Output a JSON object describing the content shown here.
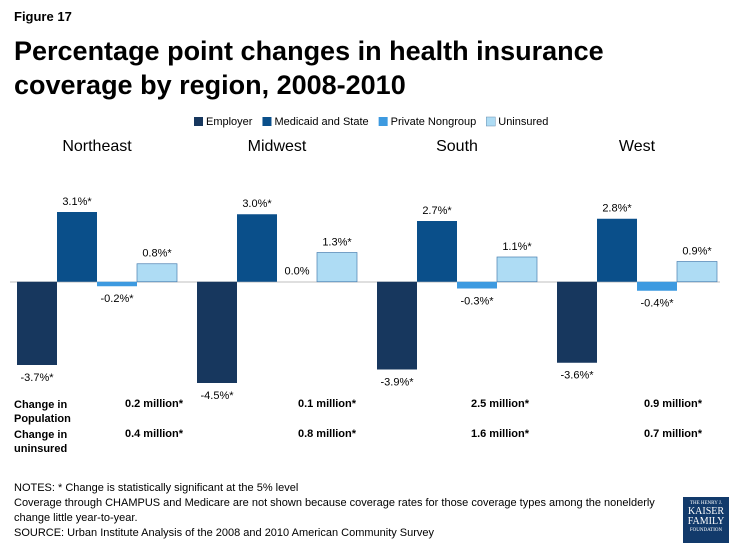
{
  "figure_label": "Figure 17",
  "chart_data": {
    "type": "bar",
    "title": "Percentage point changes in health insurance coverage by region, 2008-2010",
    "categories": [
      "Northeast",
      "Midwest",
      "South",
      "West"
    ],
    "series": [
      {
        "name": "Employer",
        "color": "#17375e",
        "values": [
          -3.7,
          -4.5,
          -3.9,
          -3.6
        ],
        "value_labels": [
          "-3.7%*",
          "-4.5%*",
          "-3.9%*",
          "-3.6%*"
        ]
      },
      {
        "name": "Medicaid and State",
        "color": "#0a4f8a",
        "values": [
          3.1,
          3.0,
          2.7,
          2.8
        ],
        "value_labels": [
          "3.1%*",
          "3.0%*",
          "2.7%*",
          "2.8%*"
        ]
      },
      {
        "name": "Private Nongroup",
        "color": "#3d9ae0",
        "values": [
          -0.2,
          0,
          -0.3,
          -0.4
        ],
        "value_labels": [
          "-0.2%*",
          "0.0%",
          "-0.3%*",
          "-0.4%*"
        ]
      },
      {
        "name": "Uninsured",
        "color": "#aedcf4",
        "values": [
          0.8,
          1.3,
          1.1,
          0.9
        ],
        "value_labels": [
          "0.8%*",
          "1.3%*",
          "1.1%*",
          "0.9%*"
        ]
      }
    ],
    "legend": "top"
  },
  "table": {
    "rows": [
      {
        "label": "Change in Population",
        "values": [
          "0.2 million*",
          "0.1 million*",
          "2.5 million*",
          "0.9 million*"
        ]
      },
      {
        "label": "Change in uninsured",
        "values": [
          "0.4 million*",
          "0.8 million*",
          "1.6 million*",
          "0.7 million*"
        ]
      }
    ]
  },
  "notes": [
    "NOTES: * Change is statistically significant at the 5% level",
    "Coverage through CHAMPUS and Medicare are not shown because coverage rates for those coverage types among the nonelderly change little year-to-year.",
    "SOURCE: Urban Institute Analysis of the 2008 and 2010 American Community Survey"
  ],
  "logo": [
    "THE HENRY J.",
    "KAISER",
    "FAMILY",
    "FOUNDATION"
  ]
}
